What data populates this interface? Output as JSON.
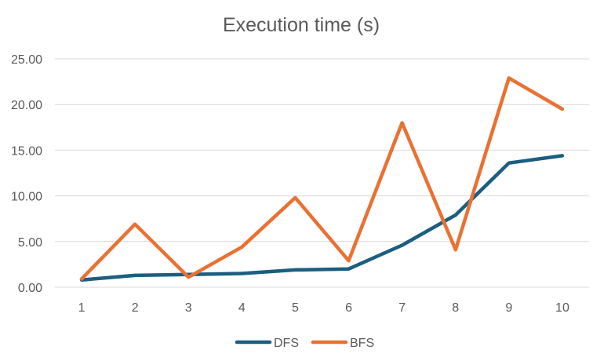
{
  "chart_data": {
    "type": "line",
    "title": "Execution time (s)",
    "xlabel": "",
    "ylabel": "",
    "x": [
      1,
      2,
      3,
      4,
      5,
      6,
      7,
      8,
      9,
      10
    ],
    "categories": [
      "1",
      "2",
      "3",
      "4",
      "5",
      "6",
      "7",
      "8",
      "9",
      "10"
    ],
    "ylim": [
      0,
      25
    ],
    "yticks": [
      "0.00",
      "5.00",
      "10.00",
      "15.00",
      "20.00",
      "25.00"
    ],
    "grid": true,
    "legend": "bottom",
    "series": [
      {
        "name": "DFS",
        "color": "#1b5e80",
        "values": [
          0.8,
          1.3,
          1.4,
          1.5,
          1.9,
          2.0,
          4.6,
          7.9,
          13.6,
          14.4
        ]
      },
      {
        "name": "BFS",
        "color": "#e97132",
        "values": [
          0.9,
          6.9,
          1.1,
          4.4,
          9.8,
          2.9,
          18.0,
          4.1,
          22.9,
          19.5
        ]
      }
    ]
  }
}
